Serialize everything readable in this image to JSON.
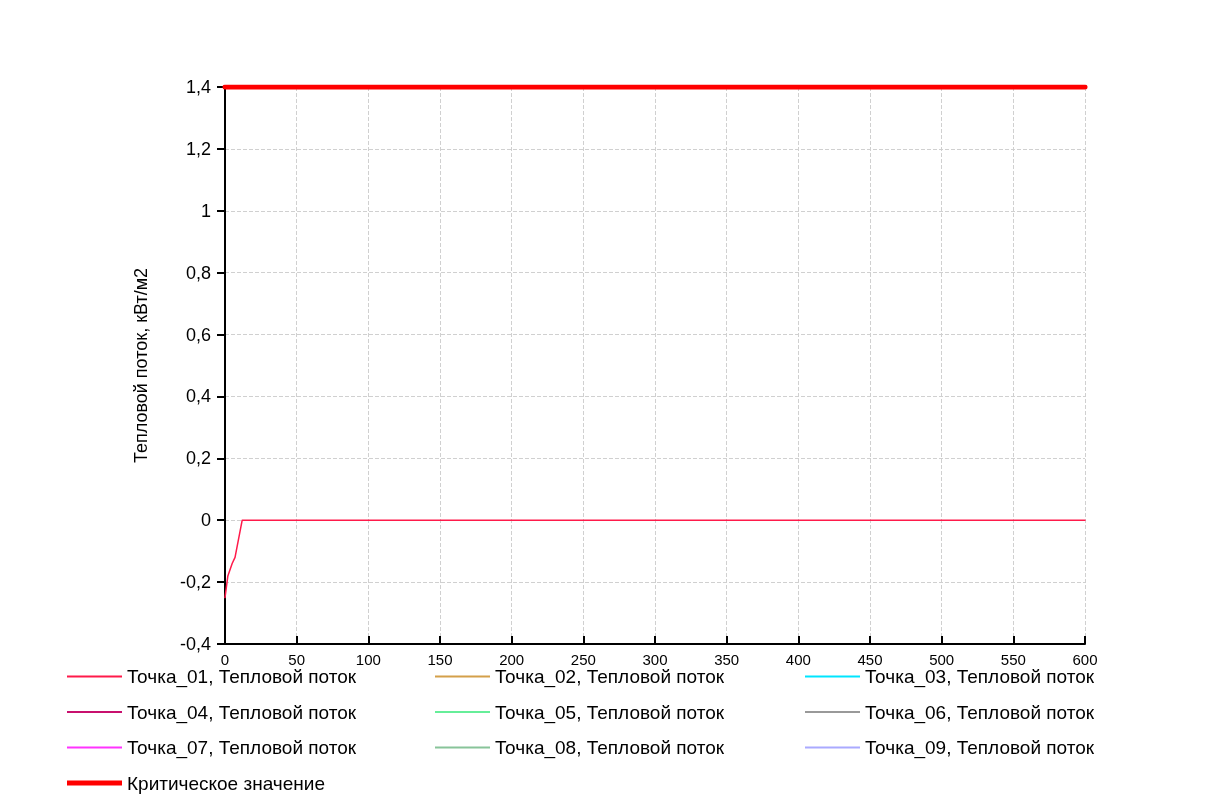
{
  "chart_data": {
    "type": "line",
    "ylabel": "Тепловой поток, кВт/м2",
    "xlim": [
      0,
      600
    ],
    "xticks": [
      0,
      50,
      100,
      150,
      200,
      250,
      300,
      350,
      400,
      450,
      500,
      550,
      600
    ],
    "ylim": [
      -0.4,
      1.4
    ],
    "yticks": [
      {
        "value": -0.4,
        "label": "-0,4"
      },
      {
        "value": -0.2,
        "label": "-0,2"
      },
      0,
      {
        "value": 0.2,
        "label": "0,2"
      },
      {
        "value": 0.4,
        "label": "0,4"
      },
      {
        "value": 0.6,
        "label": "0,6"
      },
      {
        "value": 0.8,
        "label": "0,8"
      },
      1,
      {
        "value": 1.2,
        "label": "1,2"
      },
      {
        "value": 1.4,
        "label": "1,4"
      }
    ],
    "grid": true,
    "legend": "bottom",
    "marker": "none",
    "line_style": "solid",
    "series": [
      {
        "name": "Точка_01, Тепловой поток",
        "color": "#ff1a4a",
        "x": [
          0,
          2,
          5,
          7,
          12,
          600
        ],
        "values": [
          -0.25,
          -0.18,
          -0.14,
          -0.12,
          0,
          0
        ]
      },
      {
        "name": "Точка_02, Тепловой поток",
        "color": "#d4a04a"
      },
      {
        "name": "Точка_03, Тепловой поток",
        "color": "#00e5ff"
      },
      {
        "name": "Точка_04, Тепловой поток",
        "color": "#c8106e"
      },
      {
        "name": "Точка_05, Тепловой поток",
        "color": "#66ee99"
      },
      {
        "name": "Точка_06, Тепловой поток",
        "color": "#999999"
      },
      {
        "name": "Точка_07, Тепловой поток",
        "color": "#ff33ff"
      },
      {
        "name": "Точка_08, Тепловой поток",
        "color": "#88c499"
      },
      {
        "name": "Точка_09, Тепловой поток",
        "color": "#aaaaff"
      },
      {
        "name": "Критическое значение",
        "color": "#ff0000",
        "x": [
          0,
          600
        ],
        "values": [
          1.4,
          1.4
        ]
      }
    ]
  }
}
